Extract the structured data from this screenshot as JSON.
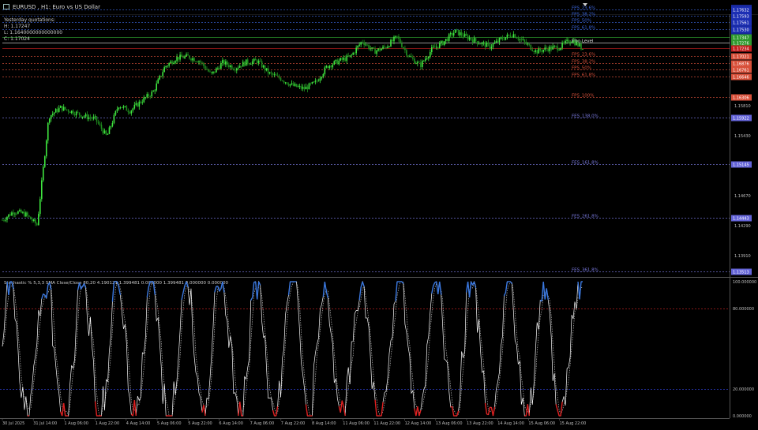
{
  "window": {
    "title": "EURUSD , H1: Euro vs US Dollar",
    "icon": "chart-window-icon"
  },
  "info_panel": {
    "line1": "Yesterday quotations:",
    "line2": "H: 1.17247",
    "line3": "L: 1.1640000000000000",
    "line4": "C: 1.17024"
  },
  "price_axis": {
    "labels": [
      "1.16950",
      "1.16570",
      "1.16190",
      "1.15810",
      "1.15430",
      "1.15050",
      "1.14670",
      "1.14290",
      "1.13910"
    ]
  },
  "levels": [
    {
      "label": "FPS_23.6%",
      "tag": "1.17632",
      "color": "#3a64d8",
      "tag_bg": "#1c2fb4"
    },
    {
      "label": "FPS_38.2%",
      "tag": "1.17593",
      "color": "#3a64d8",
      "tag_bg": "#1c2fb4"
    },
    {
      "label": "FPS_50%",
      "tag": "1.17561",
      "color": "#3a64d8",
      "tag_bg": "#1c2fb4"
    },
    {
      "label": "FPS_61.8%",
      "tag": "1.17530",
      "color": "#3a64d8",
      "tag_bg": "#1c2fb4"
    },
    {
      "label": "",
      "tag": "1.17347",
      "color": "#2f9e2f",
      "tag_bg": "#2e9a2e"
    },
    {
      "label": "Fibo Level",
      "tag": "1.17276",
      "color": "#d8d8d8",
      "tag_bg": "#2e9a2e"
    },
    {
      "label": "",
      "tag": "1.17234",
      "color": "#c02020",
      "tag_bg": "#c21e1e"
    },
    {
      "label": "FPS_23.6%",
      "tag": "1.17021",
      "color": "#d8503a",
      "tag_bg": "#d8503a"
    },
    {
      "label": "FPS_38.2%",
      "tag": "1.16876",
      "color": "#d8503a",
      "tag_bg": "#d8503a"
    },
    {
      "label": "FPS_50%",
      "tag": "1.16761",
      "color": "#d8503a",
      "tag_bg": "#d8503a"
    },
    {
      "label": "FPS_61.8%",
      "tag": "1.16646",
      "color": "#d8503a",
      "tag_bg": "#d8503a"
    },
    {
      "label": "FPS_100%",
      "tag": "1.16306",
      "color": "#d8503a",
      "tag_bg": "#d8503a"
    },
    {
      "label": "FES_138.0%",
      "tag": "1.15922",
      "color": "#7a7ae0",
      "tag_bg": "#6464d8"
    },
    {
      "label": "FES_161.8%",
      "tag": "1.15145",
      "color": "#7a7ae0",
      "tag_bg": "#6464d8"
    },
    {
      "label": "FES_261.8%",
      "tag": "1.14443",
      "color": "#7a7ae0",
      "tag_bg": "#6464d8"
    },
    {
      "label": "FES_361.8%",
      "tag": "1.13513",
      "color": "#7a7ae0",
      "tag_bg": "#6464d8"
    }
  ],
  "indicator": {
    "label": "Stochastic % 5,3,3 SMA Close/Close 80,20 4.190121 1.399481 0.000000 1.399481 0.000000 0.000000",
    "axis_labels": [
      "100.000000",
      "80.000000",
      "20.000000",
      "0.000000"
    ]
  },
  "time_axis": {
    "labels": [
      "30 Jul 2025",
      "31 Jul 14:00",
      "1 Aug 06:00",
      "1 Aug 22:00",
      "4 Aug 14:00",
      "5 Aug 06:00",
      "5 Aug 22:00",
      "6 Aug 14:00",
      "7 Aug 06:00",
      "7 Aug 22:00",
      "8 Aug 14:00",
      "11 Aug 06:00",
      "11 Aug 22:00",
      "12 Aug 14:00",
      "13 Aug 06:00",
      "13 Aug 22:00",
      "14 Aug 14:00",
      "15 Aug 06:00",
      "15 Aug 22:00"
    ]
  },
  "colors": {
    "bull": "#3fe63f",
    "bear": "#1f8f1f",
    "stoch_main": "#ffffff",
    "stoch_signal": "#bbbbbb",
    "overbought": "#3a78e0",
    "oversold": "#e02020"
  },
  "chart_data": {
    "type": "line",
    "series": [
      {
        "values": [
          1.1438,
          1.1452,
          1.1447,
          1.143,
          1.1602,
          1.1616,
          1.161,
          1.1603,
          1.1598,
          1.157,
          1.162,
          1.1611,
          1.1627,
          1.1641,
          1.1681,
          1.1695,
          1.1697,
          1.169,
          1.1668,
          1.1688,
          1.1679,
          1.1688,
          1.169,
          1.167,
          1.1662,
          1.1651,
          1.1646,
          1.1656,
          1.1682,
          1.169,
          1.1697,
          1.1722,
          1.1705,
          1.1712,
          1.1728,
          1.1698,
          1.1683,
          1.1708,
          1.172,
          1.1737,
          1.1728,
          1.172,
          1.1713,
          1.1725,
          1.1733,
          1.1719,
          1.1705,
          1.171,
          1.1712,
          1.1724,
          1.171
        ]
      }
    ],
    "ylim": [
      1.1349,
      1.1763
    ]
  }
}
